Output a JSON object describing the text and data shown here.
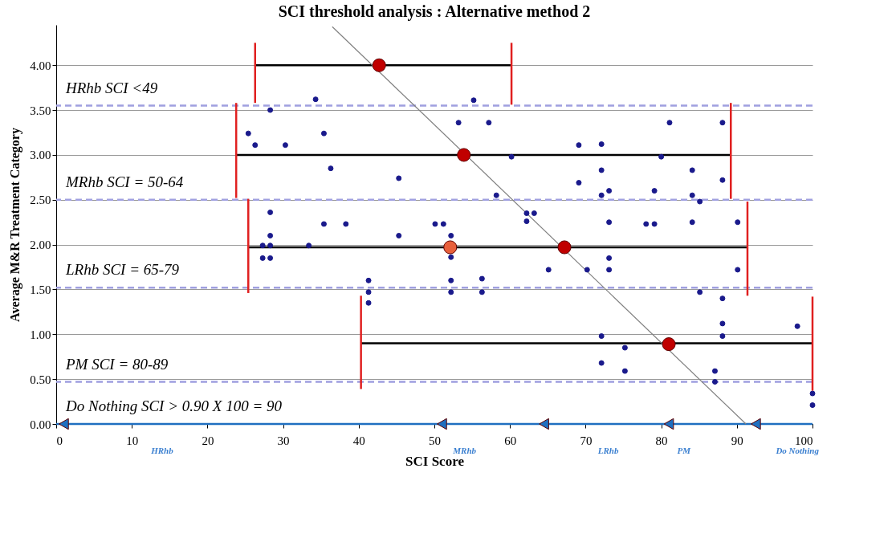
{
  "chart_data": {
    "type": "scatter",
    "title": "SCI threshold analysis : Alternative method 2",
    "xlabel": "SCI Score",
    "ylabel": "Average M&R Treatment Category",
    "xlim": [
      0,
      100
    ],
    "xticks": [
      0,
      10,
      20,
      30,
      40,
      50,
      60,
      70,
      80,
      90,
      100
    ],
    "ylim": [
      0,
      4.45
    ],
    "yticks": [
      {
        "value": 0,
        "label": "0.00"
      },
      {
        "value": 0.5,
        "label": "0.50"
      },
      {
        "value": 1,
        "label": "1.00"
      },
      {
        "value": 1.5,
        "label": "1.50"
      },
      {
        "value": 2,
        "label": "2.00"
      },
      {
        "value": 2.5,
        "label": "2.50"
      },
      {
        "value": 3,
        "label": "3.00"
      },
      {
        "value": 3.5,
        "label": "3.50"
      },
      {
        "value": 4,
        "label": "4.00"
      }
    ],
    "grid": "y",
    "ref_lines": [
      {
        "axis": "y",
        "value": 3.55,
        "color": "#a0a0e0",
        "line_style": "dashed"
      },
      {
        "axis": "y",
        "value": 2.5,
        "color": "#a0a0e0",
        "line_style": "dashed"
      },
      {
        "axis": "y",
        "value": 1.52,
        "color": "#a0a0e0",
        "line_style": "dashed"
      },
      {
        "axis": "y",
        "value": 0.47,
        "color": "#a0a0e0",
        "line_style": "dashed"
      },
      {
        "axis": "y",
        "value": 0,
        "color": "#1f6fc0",
        "line_style": "solid"
      }
    ],
    "series": [
      {
        "marker": "triangle",
        "color": "#1f6fc0",
        "x": [
          1,
          51,
          64.5,
          81,
          92.5
        ],
        "values": [
          0,
          0,
          0,
          0,
          0
        ]
      },
      {
        "type": "line",
        "color": "#000000",
        "x": [
          26.3,
          60.2
        ],
        "values": [
          4,
          4
        ]
      },
      {
        "type": "line",
        "color": "#000000",
        "x": [
          23.8,
          89.2
        ],
        "values": [
          3,
          3
        ]
      },
      {
        "type": "line",
        "color": "#000000",
        "x": [
          25.4,
          91.4
        ],
        "values": [
          1.97,
          1.97
        ]
      },
      {
        "type": "line",
        "color": "#000000",
        "x": [
          40.3,
          100
        ],
        "values": [
          0.9,
          0.9
        ]
      },
      {
        "type": "line",
        "color": "#e02020",
        "x": [
          26.3,
          26.3
        ],
        "values": [
          3.58,
          4.25
        ]
      },
      {
        "type": "line",
        "color": "#e02020",
        "x": [
          60.2,
          60.2
        ],
        "values": [
          3.56,
          4.25
        ]
      },
      {
        "type": "line",
        "color": "#e02020",
        "x": [
          23.8,
          23.8
        ],
        "values": [
          2.52,
          3.58
        ]
      },
      {
        "type": "line",
        "color": "#e02020",
        "x": [
          89.2,
          89.2
        ],
        "values": [
          2.51,
          3.58
        ]
      },
      {
        "type": "line",
        "color": "#e02020",
        "x": [
          25.4,
          25.4
        ],
        "values": [
          1.46,
          2.51
        ]
      },
      {
        "type": "line",
        "color": "#e02020",
        "x": [
          91.4,
          91.4
        ],
        "values": [
          1.43,
          2.48
        ]
      },
      {
        "type": "line",
        "color": "#e02020",
        "x": [
          40.3,
          40.3
        ],
        "values": [
          0.39,
          1.43
        ]
      },
      {
        "type": "line",
        "color": "#e02020",
        "x": [
          100,
          100
        ],
        "values": [
          0.37,
          1.42
        ]
      },
      {
        "type": "line",
        "color": "#808080",
        "x": [
          36.5,
          91.2
        ],
        "values": [
          4.43,
          0
        ]
      },
      {
        "marker": "circle",
        "color": "#1a1a8c",
        "x": [
          34.3,
          28.3,
          25.4,
          35.4,
          26.3,
          30.3,
          36.3,
          45.3,
          28.3,
          35.4,
          38.3,
          50.1,
          28.3,
          45.3,
          27.3,
          28.3,
          33.4,
          27.3,
          28.3,
          55.2,
          53.2,
          57.2,
          81.1,
          88.1,
          69.1,
          72.1,
          60.2,
          80,
          72.1,
          84.1,
          69.1,
          88.1,
          73.1,
          79.1,
          58.2,
          72.1,
          84.1,
          85.1,
          62.2,
          63.2,
          62.2,
          51.2,
          73.1,
          78,
          79.1,
          84.1,
          90.1,
          52.2,
          52.2,
          73.1,
          65.1,
          70.2,
          73.1,
          90.1,
          52.2,
          56.3,
          52.2,
          56.3,
          85.1,
          88.1,
          88.1,
          98,
          88.1,
          72.1,
          75.2,
          72.1,
          75.2,
          87.1,
          87.1,
          100,
          100,
          41.3,
          41.3,
          41.3
        ],
        "values": [
          3.62,
          3.5,
          3.24,
          3.24,
          3.11,
          3.11,
          2.85,
          2.74,
          2.36,
          2.23,
          2.23,
          2.23,
          2.1,
          2.1,
          1.99,
          1.99,
          1.99,
          1.85,
          1.85,
          3.61,
          3.36,
          3.36,
          3.36,
          3.36,
          3.11,
          3.12,
          2.98,
          2.98,
          2.83,
          2.83,
          2.69,
          2.72,
          2.6,
          2.6,
          2.55,
          2.55,
          2.55,
          2.48,
          2.35,
          2.35,
          2.26,
          2.23,
          2.25,
          2.23,
          2.23,
          2.25,
          2.25,
          2.1,
          1.86,
          1.85,
          1.72,
          1.72,
          1.72,
          1.72,
          1.6,
          1.62,
          1.47,
          1.47,
          1.47,
          1.4,
          1.12,
          1.09,
          0.98,
          0.98,
          0.85,
          0.68,
          0.59,
          0.59,
          0.47,
          0.34,
          0.21,
          1.6,
          1.47,
          1.35
        ]
      },
      {
        "marker": "circle",
        "color": "#e8603c",
        "x": [
          52.1
        ],
        "values": [
          1.97
        ]
      },
      {
        "marker": "circle",
        "color": "#c00000",
        "x": [
          42.7,
          53.9,
          67.2,
          81
        ],
        "values": [
          4,
          3,
          1.97,
          0.89
        ]
      }
    ],
    "annotations": [
      "HRhb  SCI  <49",
      "MRhb  SCI  = 50-64",
      "LRhb  SCI  = 65-79",
      "PM  SCI   = 80-89",
      "Do Nothing  SCI > 0.90 X 100 = 90",
      {
        "text": "HRhb",
        "x": 14,
        "y": 0
      },
      {
        "text": "MRhb",
        "x": 54,
        "y": 0
      },
      {
        "text": "LRhb",
        "x": 73,
        "y": 0
      },
      {
        "text": "PM",
        "x": 83,
        "y": 0
      },
      {
        "text": "Do Nothing",
        "x": 98,
        "y": 0
      }
    ]
  }
}
